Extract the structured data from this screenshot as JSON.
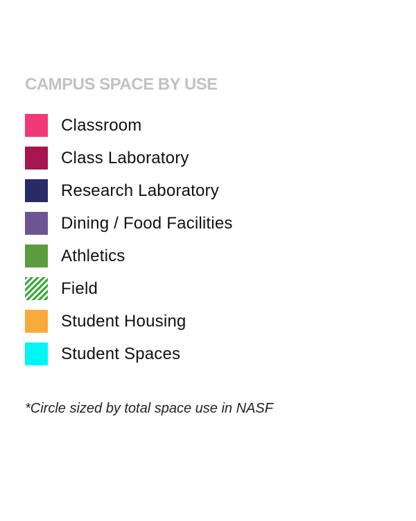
{
  "legend": {
    "title": "CAMPUS SPACE BY USE",
    "items": [
      {
        "label": "Classroom",
        "color": "#f03a78",
        "fill": "solid"
      },
      {
        "label": "Class Laboratory",
        "color": "#a8154f",
        "fill": "solid"
      },
      {
        "label": "Research Laboratory",
        "color": "#282b67",
        "fill": "solid"
      },
      {
        "label": "Dining / Food Facilities",
        "color": "#6b5592",
        "fill": "solid"
      },
      {
        "label": "Athletics",
        "color": "#5a9c3e",
        "fill": "solid"
      },
      {
        "label": "Field",
        "color": "#3aa63a",
        "fill": "hatched"
      },
      {
        "label": "Student Housing",
        "color": "#f9aa3d",
        "fill": "solid"
      },
      {
        "label": "Student Spaces",
        "color": "#00f5f5",
        "fill": "solid"
      }
    ],
    "footnote": "*Circle sized by total space use in NASF"
  }
}
